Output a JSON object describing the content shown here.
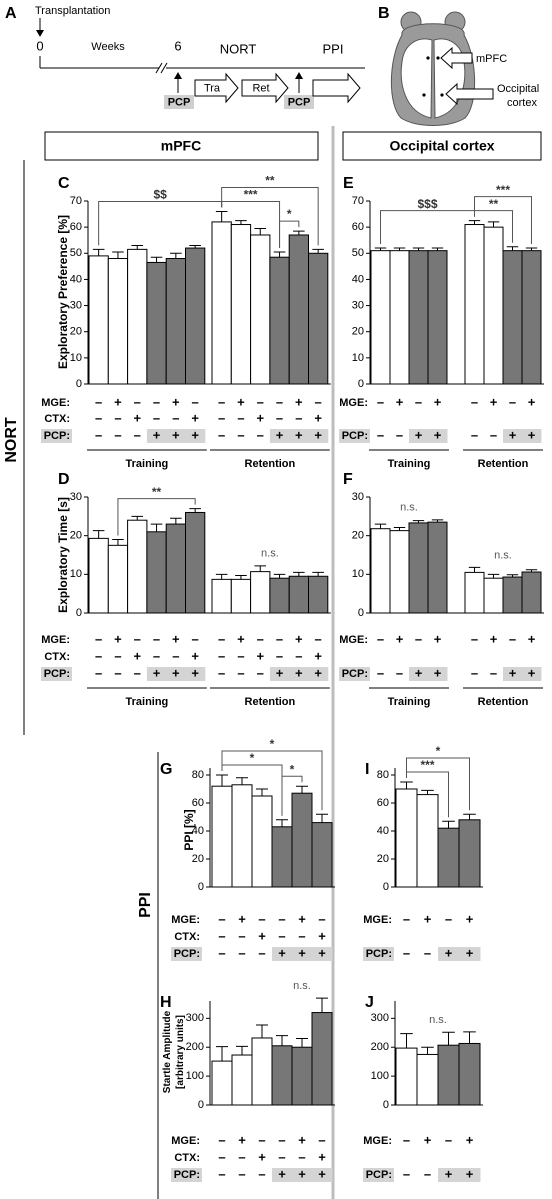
{
  "timeline": {
    "letter": "A",
    "start_event": "Transplantation",
    "start": 0,
    "weeks": "Weeks",
    "week6": 6,
    "nort": "NORT",
    "ppi": "PPI",
    "pcp": "PCP",
    "training": "Tra",
    "retention": "Ret"
  },
  "brain": {
    "letter": "B",
    "mpfc": "mPFC",
    "occipital": [
      "Occipital",
      "cortex"
    ]
  },
  "headers": {
    "mpfc": "mPFC",
    "occipital": "Occipital cortex"
  },
  "sections": {
    "nort": "NORT",
    "ppi": "PPI"
  },
  "chart_data": [
    {
      "type": "bar",
      "panel": "C",
      "ylabel": "Exploratory Preference [%]",
      "ylim": [
        0,
        70
      ],
      "yticks": [
        0,
        10,
        20,
        30,
        40,
        50,
        60,
        70
      ],
      "bar_colors": [
        "#ffffff",
        "#ffffff",
        "#ffffff",
        "#777777",
        "#777777",
        "#777777"
      ],
      "groups": [
        {
          "name": "Training",
          "values": [
            49,
            48,
            51.5,
            46.5,
            48,
            52
          ],
          "errors": [
            2.5,
            2.5,
            1.5,
            2,
            2,
            1
          ]
        },
        {
          "name": "Retention",
          "values": [
            62,
            61,
            57,
            48.5,
            57,
            50
          ],
          "errors": [
            4,
            1.5,
            2.5,
            2,
            1.5,
            1.5
          ]
        }
      ],
      "conditions": [
        {
          "label": "MGE:",
          "signs": [
            "–",
            "+",
            "–",
            "–",
            "+",
            "–"
          ]
        },
        {
          "label": "CTX:",
          "signs": [
            "–",
            "–",
            "+",
            "–",
            "–",
            "+"
          ]
        },
        {
          "label": "PCP:",
          "signs": [
            "–",
            "–",
            "–",
            "+",
            "+",
            "+"
          ],
          "shaded": [
            false,
            false,
            false,
            true,
            true,
            true
          ]
        }
      ],
      "annotations": [
        {
          "text": "*",
          "between": [
            [
              1,
              3
            ],
            [
              1,
              4
            ]
          ]
        },
        {
          "text": "***",
          "between": [
            [
              1,
              0
            ],
            [
              1,
              3
            ]
          ]
        },
        {
          "text": "**",
          "between": [
            [
              1,
              0
            ],
            [
              1,
              5
            ]
          ]
        },
        {
          "text": "$$",
          "between": [
            [
              0,
              0
            ],
            [
              1,
              0
            ]
          ]
        }
      ]
    },
    {
      "type": "bar",
      "panel": "D",
      "ylabel": "Exploratory Time [s]",
      "ylim": [
        0,
        30
      ],
      "yticks": [
        0,
        10,
        20,
        30
      ],
      "bar_colors": [
        "#ffffff",
        "#ffffff",
        "#ffffff",
        "#777777",
        "#777777",
        "#777777"
      ],
      "groups": [
        {
          "name": "Training",
          "values": [
            19.3,
            17.5,
            24,
            21,
            23,
            26
          ],
          "errors": [
            2,
            1.5,
            1,
            2,
            1.5,
            1
          ]
        },
        {
          "name": "Retention",
          "values": [
            8.7,
            8.7,
            10.7,
            9,
            9.5,
            9.5
          ],
          "errors": [
            1.3,
            1,
            1.5,
            1,
            1,
            1
          ]
        }
      ],
      "conditions": [
        {
          "label": "MGE:",
          "signs": [
            "–",
            "+",
            "–",
            "–",
            "+",
            "–"
          ]
        },
        {
          "label": "CTX:",
          "signs": [
            "–",
            "–",
            "+",
            "–",
            "–",
            "+"
          ]
        },
        {
          "label": "PCP:",
          "signs": [
            "–",
            "–",
            "–",
            "+",
            "+",
            "+"
          ],
          "shaded": [
            false,
            false,
            false,
            true,
            true,
            true
          ]
        }
      ],
      "annotations": [
        {
          "text": "**",
          "between": [
            [
              0,
              1
            ],
            [
              0,
              5
            ]
          ]
        },
        {
          "text": "n.s.",
          "between": [
            [
              1,
              0
            ],
            [
              1,
              5
            ]
          ],
          "line": false
        }
      ]
    },
    {
      "type": "bar",
      "panel": "E",
      "ylim": [
        0,
        70
      ],
      "yticks": [
        0,
        10,
        20,
        30,
        40,
        50,
        60,
        70
      ],
      "bar_colors": [
        "#ffffff",
        "#ffffff",
        "#777777",
        "#777777"
      ],
      "groups": [
        {
          "name": "Training",
          "values": [
            51,
            51,
            51,
            51
          ],
          "errors": [
            1,
            1,
            1,
            1
          ]
        },
        {
          "name": "Retention",
          "values": [
            61,
            60,
            51,
            51
          ],
          "errors": [
            1.5,
            2,
            1.5,
            1
          ]
        }
      ],
      "conditions": [
        {
          "label": "MGE:",
          "signs": [
            "–",
            "+",
            "–",
            "+"
          ]
        },
        {
          "label": "PCP:",
          "signs": [
            "–",
            "–",
            "+",
            "+"
          ],
          "shaded": [
            false,
            false,
            true,
            true
          ]
        }
      ],
      "annotations": [
        {
          "text": "**",
          "between": [
            [
              1,
              0
            ],
            [
              1,
              2
            ]
          ]
        },
        {
          "text": "***",
          "between": [
            [
              1,
              0
            ],
            [
              1,
              3
            ]
          ]
        },
        {
          "text": "$$$",
          "between": [
            [
              0,
              0
            ],
            [
              1,
              0
            ]
          ]
        }
      ]
    },
    {
      "type": "bar",
      "panel": "F",
      "ylim": [
        0,
        30
      ],
      "yticks": [
        0,
        10,
        20,
        30
      ],
      "bar_colors": [
        "#ffffff",
        "#ffffff",
        "#777777",
        "#777777"
      ],
      "groups": [
        {
          "name": "Training",
          "values": [
            21.8,
            21.3,
            23.3,
            23.5
          ],
          "errors": [
            1.2,
            0.8,
            0.6,
            0.6
          ]
        },
        {
          "name": "Retention",
          "values": [
            10.5,
            9,
            9.3,
            10.6
          ],
          "errors": [
            1.3,
            1,
            0.6,
            0.6
          ]
        }
      ],
      "conditions": [
        {
          "label": "MGE:",
          "signs": [
            "–",
            "+",
            "–",
            "+"
          ]
        },
        {
          "label": "PCP:",
          "signs": [
            "–",
            "–",
            "+",
            "+"
          ],
          "shaded": [
            false,
            false,
            true,
            true
          ]
        }
      ],
      "annotations": [
        {
          "text": "n.s.",
          "between": [
            [
              0,
              0
            ],
            [
              0,
              3
            ]
          ],
          "line": false
        },
        {
          "text": "n.s.",
          "between": [
            [
              1,
              0
            ],
            [
              1,
              3
            ]
          ],
          "line": false
        }
      ]
    },
    {
      "type": "bar",
      "panel": "G",
      "ylabel": "PPI [%]",
      "ylim": [
        0,
        85
      ],
      "yticks": [
        0,
        20,
        40,
        60,
        80
      ],
      "bar_colors": [
        "#ffffff",
        "#ffffff",
        "#ffffff",
        "#777777",
        "#777777",
        "#777777"
      ],
      "groups": [
        {
          "values": [
            72,
            73,
            65,
            43,
            67,
            46
          ],
          "errors": [
            8,
            5,
            5,
            5,
            5,
            6
          ]
        }
      ],
      "conditions": [
        {
          "label": "MGE:",
          "signs": [
            "–",
            "+",
            "–",
            "–",
            "+",
            "–"
          ]
        },
        {
          "label": "CTX:",
          "signs": [
            "–",
            "–",
            "+",
            "–",
            "–",
            "+"
          ]
        },
        {
          "label": "PCP:",
          "signs": [
            "–",
            "–",
            "–",
            "+",
            "+",
            "+"
          ],
          "shaded": [
            false,
            false,
            false,
            true,
            true,
            true
          ]
        }
      ],
      "annotations": [
        {
          "text": "*",
          "between": [
            [
              0,
              3
            ],
            [
              0,
              4
            ]
          ]
        },
        {
          "text": "*",
          "between": [
            [
              0,
              0
            ],
            [
              0,
              3
            ]
          ]
        },
        {
          "text": "*",
          "between": [
            [
              0,
              0
            ],
            [
              0,
              5
            ]
          ]
        }
      ]
    },
    {
      "type": "bar",
      "panel": "H",
      "ylabel": [
        "Startle Amplitude",
        "[arbitrary units]"
      ],
      "ylim": [
        0,
        360
      ],
      "yticks": [
        0,
        100,
        200,
        300
      ],
      "bar_colors": [
        "#ffffff",
        "#ffffff",
        "#ffffff",
        "#777777",
        "#777777",
        "#777777"
      ],
      "groups": [
        {
          "values": [
            152,
            173,
            232,
            205,
            200,
            320
          ],
          "errors": [
            50,
            30,
            45,
            35,
            30,
            50
          ]
        }
      ],
      "conditions": [
        {
          "label": "MGE:",
          "signs": [
            "–",
            "+",
            "–",
            "–",
            "+",
            "–"
          ]
        },
        {
          "label": "CTX:",
          "signs": [
            "–",
            "–",
            "+",
            "–",
            "–",
            "+"
          ]
        },
        {
          "label": "PCP:",
          "signs": [
            "–",
            "–",
            "–",
            "+",
            "+",
            "+"
          ],
          "shaded": [
            false,
            false,
            false,
            true,
            true,
            true
          ]
        }
      ],
      "annotations": [
        {
          "text": "n.s.",
          "between": [
            [
              0,
              3
            ],
            [
              0,
              5
            ]
          ],
          "line": false
        }
      ]
    },
    {
      "type": "bar",
      "panel": "I",
      "ylim": [
        0,
        85
      ],
      "yticks": [
        0,
        20,
        40,
        60,
        80
      ],
      "bar_colors": [
        "#ffffff",
        "#ffffff",
        "#777777",
        "#777777"
      ],
      "groups": [
        {
          "values": [
            70,
            66,
            42,
            48
          ],
          "errors": [
            5,
            3,
            5,
            4
          ]
        }
      ],
      "conditions": [
        {
          "label": "MGE:",
          "signs": [
            "–",
            "+",
            "–",
            "+"
          ]
        },
        {
          "label": "PCP:",
          "signs": [
            "–",
            "–",
            "+",
            "+"
          ],
          "shaded": [
            false,
            false,
            true,
            true
          ]
        }
      ],
      "annotations": [
        {
          "text": "***",
          "between": [
            [
              0,
              0
            ],
            [
              0,
              2
            ]
          ]
        },
        {
          "text": "*",
          "between": [
            [
              0,
              0
            ],
            [
              0,
              3
            ]
          ]
        }
      ]
    },
    {
      "type": "bar",
      "panel": "J",
      "ylim": [
        0,
        360
      ],
      "yticks": [
        0,
        100,
        200,
        300
      ],
      "bar_colors": [
        "#ffffff",
        "#ffffff",
        "#777777",
        "#777777"
      ],
      "groups": [
        {
          "values": [
            197,
            175,
            207,
            213
          ],
          "errors": [
            50,
            25,
            45,
            40
          ]
        }
      ],
      "conditions": [
        {
          "label": "MGE:",
          "signs": [
            "–",
            "+",
            "–",
            "+"
          ]
        },
        {
          "label": "PCP:",
          "signs": [
            "–",
            "–",
            "+",
            "+"
          ],
          "shaded": [
            false,
            false,
            true,
            true
          ]
        }
      ],
      "annotations": [
        {
          "text": "n.s.",
          "between": [
            [
              0,
              0
            ],
            [
              0,
              3
            ]
          ],
          "line": false
        }
      ]
    }
  ]
}
